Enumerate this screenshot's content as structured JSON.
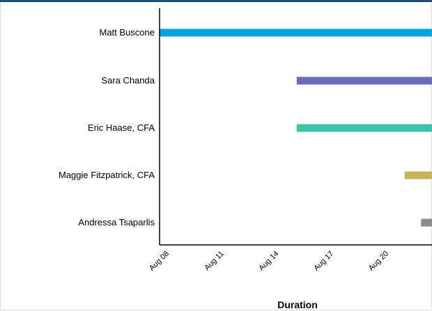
{
  "chart_data": {
    "type": "bar",
    "orientation": "horizontal-gantt",
    "xlabel": "Duration",
    "ylabel": "",
    "categories": [
      "Matt Buscone",
      "Sara Chanda",
      "Eric Haase, CFA",
      "Maggie Fitzpatrick, CFA",
      "Andressa Tsaparlis"
    ],
    "x_ticks": [
      "Aug 08",
      "Aug 11",
      "Aug 14",
      "Aug 17",
      "Aug 20"
    ],
    "x_tick_days": [
      8,
      11,
      14,
      17,
      20
    ],
    "xlim_days": [
      8,
      22.9
    ],
    "series": [
      {
        "category": "Matt Buscone",
        "start_day": 8.0,
        "end_day": 22.9,
        "color": "#00a3e0"
      },
      {
        "category": "Sara Chanda",
        "start_day": 15.5,
        "end_day": 22.9,
        "color": "#6b6bb8"
      },
      {
        "category": "Eric Haase, CFA",
        "start_day": 15.5,
        "end_day": 22.9,
        "color": "#3cc4a6"
      },
      {
        "category": "Maggie Fitzpatrick, CFA",
        "start_day": 21.4,
        "end_day": 22.9,
        "color": "#c8b45c"
      },
      {
        "category": "Andressa Tsaparlis",
        "start_day": 22.3,
        "end_day": 22.9,
        "color": "#8c8c8c"
      }
    ],
    "grid": false,
    "legend": "none"
  }
}
